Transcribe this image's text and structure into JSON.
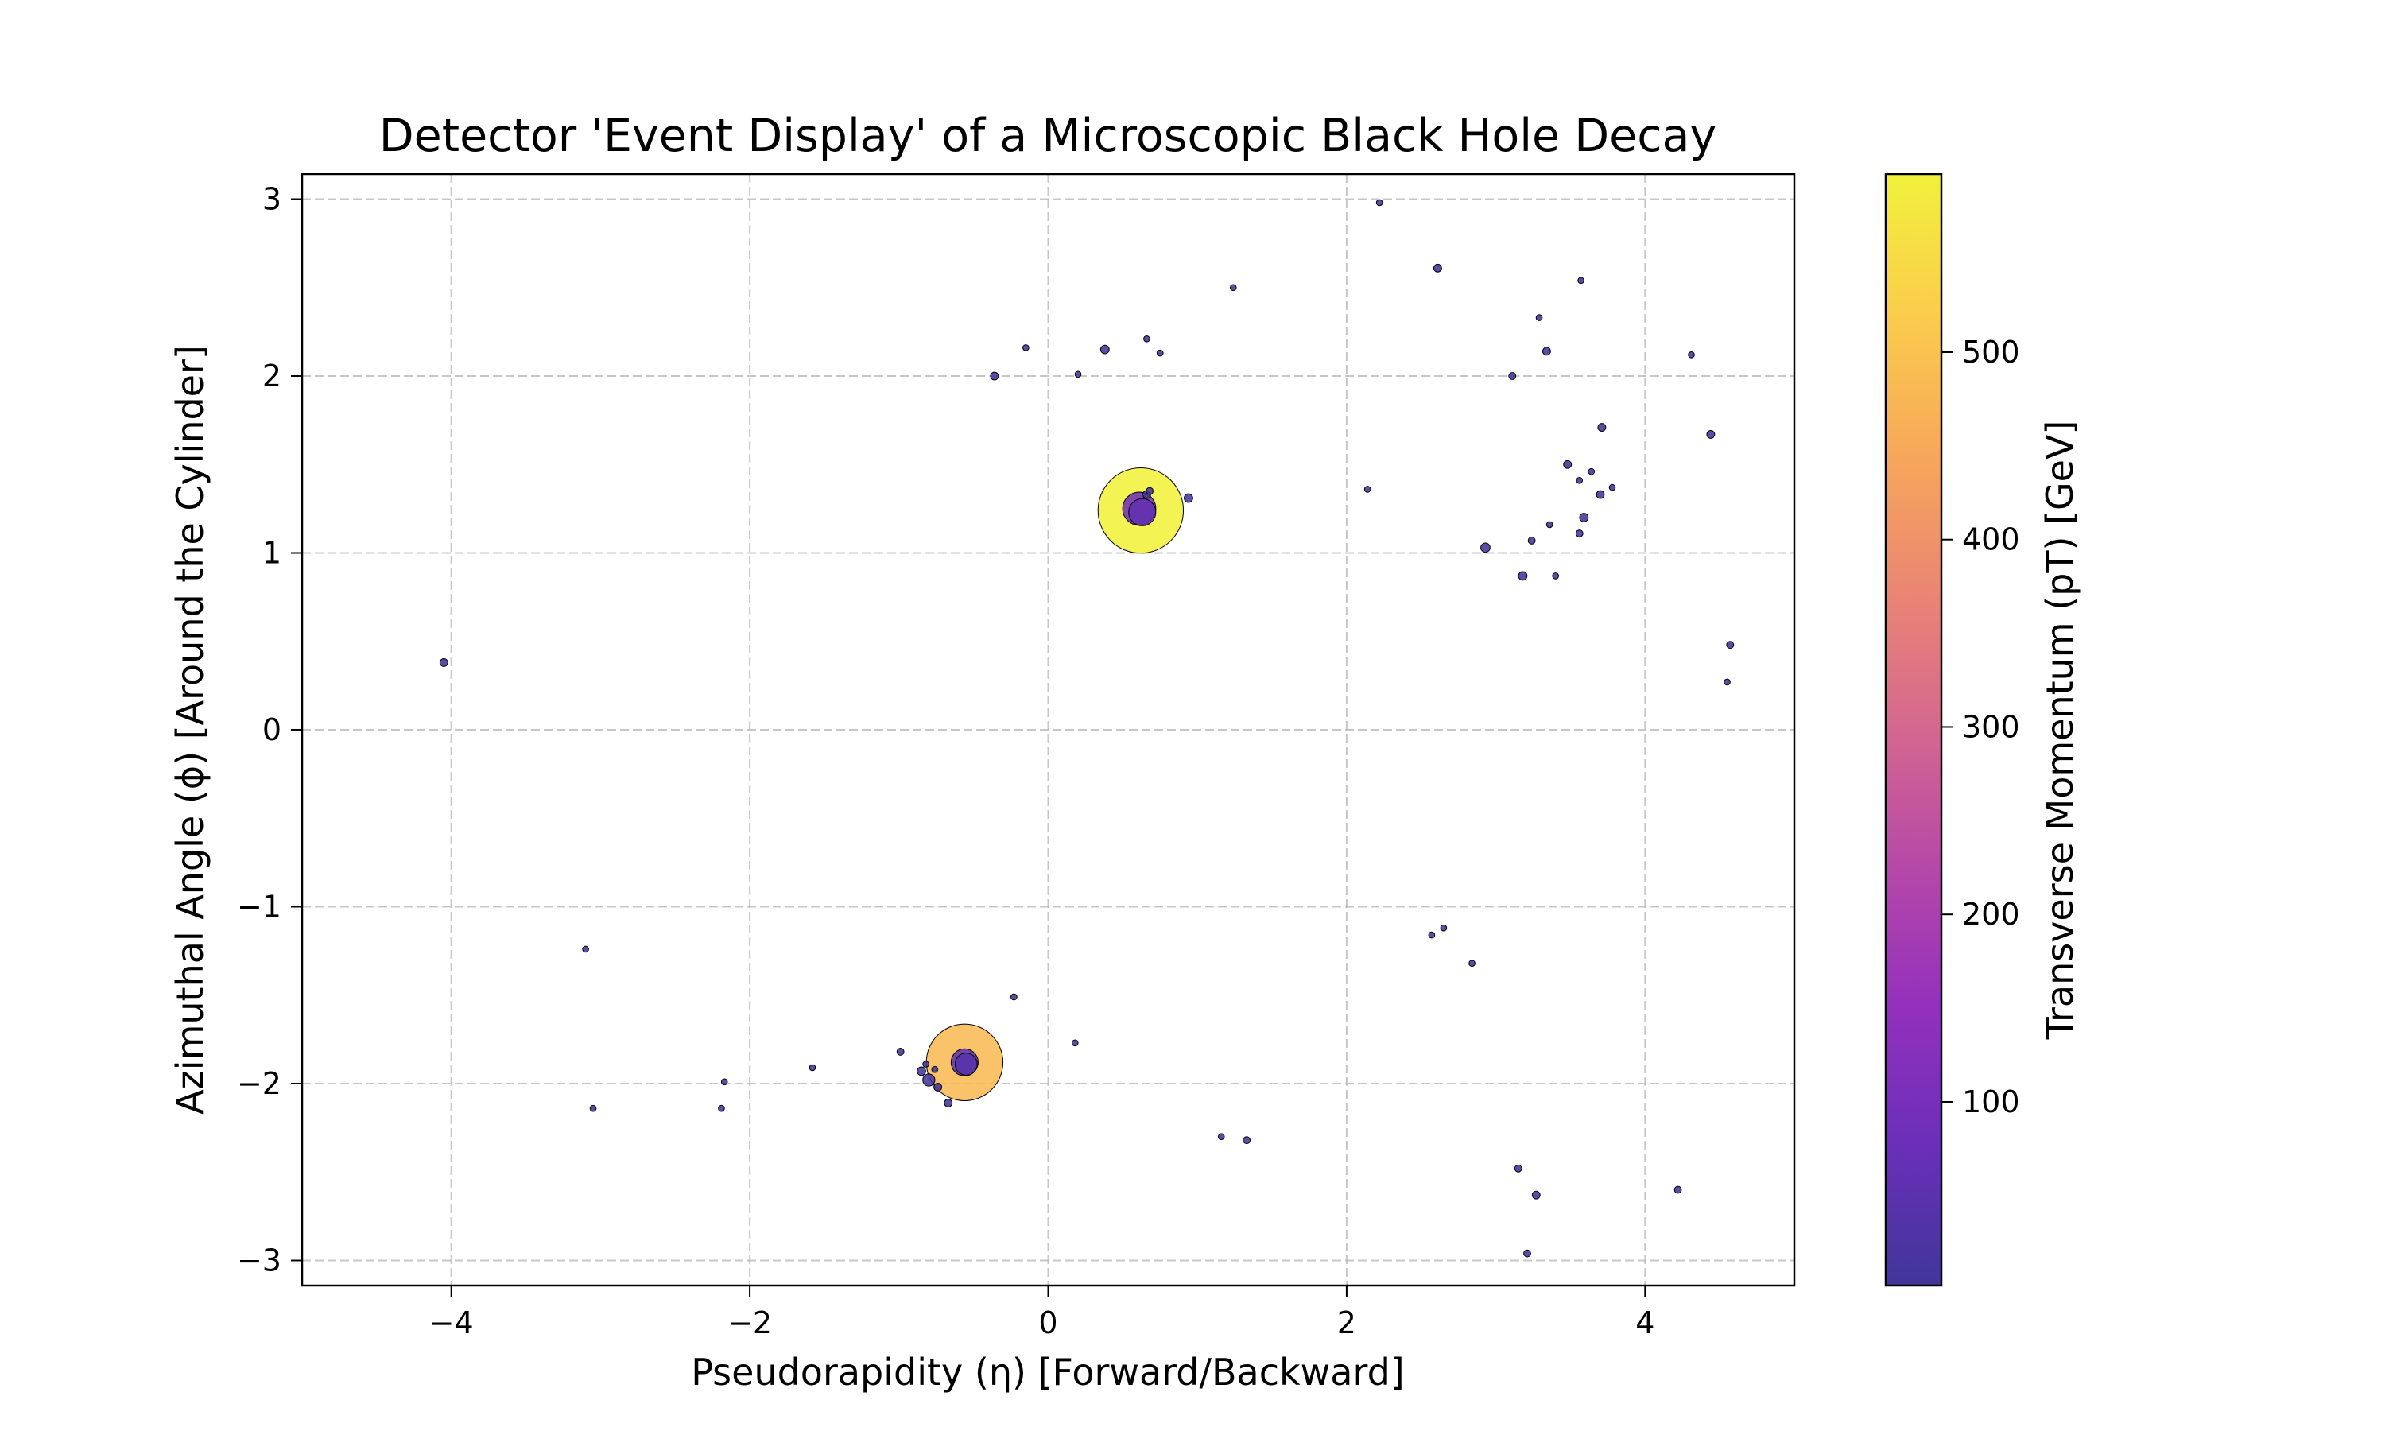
{
  "chart_data": {
    "type": "scatter",
    "title": "Detector 'Event Display' of a Microscopic Black Hole Decay",
    "xlabel": "Pseudorapidity (η) [Forward/Backward]",
    "ylabel": "Azimuthal Angle (ϕ) [Around the Cylinder]",
    "colorbar_label": "Transverse Momentum (pT) [GeV]",
    "xlim": [
      -5,
      5
    ],
    "ylim": [
      -3.1416,
      3.1416
    ],
    "xticks": [
      -4,
      -2,
      0,
      2,
      4
    ],
    "xtick_labels": [
      "−4",
      "−2",
      "0",
      "2",
      "4"
    ],
    "yticks": [
      -3,
      -2,
      -1,
      0,
      1,
      2,
      3
    ],
    "ytick_labels": [
      "−3",
      "−2",
      "−1",
      "0",
      "1",
      "2",
      "3"
    ],
    "color_range": [
      2,
      595
    ],
    "cticks": [
      100,
      200,
      300,
      400,
      500
    ],
    "ctick_labels": [
      "100",
      "200",
      "300",
      "400",
      "500"
    ],
    "colormap": "plasma",
    "colormap_stops": [
      "#40369a",
      "#6a2fb8",
      "#9330bd",
      "#b548a8",
      "#d4678f",
      "#ea8673",
      "#f7a85a",
      "#fbcd4c",
      "#f1f13c"
    ],
    "grid": true,
    "marker_size": "proportional to pT",
    "points": [
      {
        "x": 0.62,
        "y": 1.24,
        "pT": 595
      },
      {
        "x": -0.56,
        "y": -1.88,
        "pT": 480
      },
      {
        "x": 0.61,
        "y": 1.25,
        "pT": 90
      },
      {
        "x": 0.63,
        "y": 1.23,
        "pT": 60
      },
      {
        "x": -0.56,
        "y": -1.88,
        "pT": 60
      },
      {
        "x": -0.55,
        "y": -1.89,
        "pT": 40
      },
      {
        "x": -0.8,
        "y": -1.98,
        "pT": 12
      },
      {
        "x": -0.85,
        "y": -1.93,
        "pT": 6
      },
      {
        "x": -0.67,
        "y": -2.11,
        "pT": 5
      },
      {
        "x": -0.74,
        "y": -2.02,
        "pT": 5
      },
      {
        "x": -0.76,
        "y": -1.92,
        "pT": 3
      },
      {
        "x": -0.82,
        "y": -1.89,
        "pT": 3
      },
      {
        "x": 0.66,
        "y": 1.33,
        "pT": 5
      },
      {
        "x": 0.68,
        "y": 1.35,
        "pT": 4
      },
      {
        "x": 0.94,
        "y": 1.31,
        "pT": 6
      },
      {
        "x": -4.05,
        "y": 0.38,
        "pT": 5
      },
      {
        "x": -0.36,
        "y": 2.0,
        "pT": 5
      },
      {
        "x": -0.15,
        "y": 2.16,
        "pT": 3
      },
      {
        "x": 0.2,
        "y": 2.01,
        "pT": 3
      },
      {
        "x": 0.38,
        "y": 2.15,
        "pT": 6
      },
      {
        "x": 0.66,
        "y": 2.21,
        "pT": 3
      },
      {
        "x": 0.75,
        "y": 2.13,
        "pT": 3
      },
      {
        "x": 1.24,
        "y": 2.5,
        "pT": 3
      },
      {
        "x": 2.22,
        "y": 2.98,
        "pT": 3
      },
      {
        "x": 2.61,
        "y": 2.61,
        "pT": 5
      },
      {
        "x": 3.57,
        "y": 2.54,
        "pT": 3
      },
      {
        "x": 3.29,
        "y": 2.33,
        "pT": 3
      },
      {
        "x": 3.34,
        "y": 2.14,
        "pT": 5
      },
      {
        "x": 3.11,
        "y": 2.0,
        "pT": 4
      },
      {
        "x": 4.31,
        "y": 2.12,
        "pT": 3
      },
      {
        "x": 4.44,
        "y": 1.67,
        "pT": 5
      },
      {
        "x": 3.71,
        "y": 1.71,
        "pT": 5
      },
      {
        "x": 3.48,
        "y": 1.5,
        "pT": 5
      },
      {
        "x": 3.64,
        "y": 1.46,
        "pT": 3
      },
      {
        "x": 3.56,
        "y": 1.41,
        "pT": 3
      },
      {
        "x": 3.78,
        "y": 1.37,
        "pT": 3
      },
      {
        "x": 3.7,
        "y": 1.33,
        "pT": 5
      },
      {
        "x": 3.59,
        "y": 1.2,
        "pT": 6
      },
      {
        "x": 3.36,
        "y": 1.16,
        "pT": 3
      },
      {
        "x": 3.56,
        "y": 1.11,
        "pT": 4
      },
      {
        "x": 3.24,
        "y": 1.07,
        "pT": 4
      },
      {
        "x": 2.93,
        "y": 1.03,
        "pT": 7
      },
      {
        "x": 3.18,
        "y": 0.87,
        "pT": 6
      },
      {
        "x": 3.4,
        "y": 0.87,
        "pT": 3
      },
      {
        "x": 2.14,
        "y": 1.36,
        "pT": 3
      },
      {
        "x": 4.57,
        "y": 0.48,
        "pT": 4
      },
      {
        "x": 4.55,
        "y": 0.27,
        "pT": 3
      },
      {
        "x": -3.1,
        "y": -1.24,
        "pT": 3
      },
      {
        "x": -3.05,
        "y": -2.14,
        "pT": 3
      },
      {
        "x": -2.17,
        "y": -1.99,
        "pT": 3
      },
      {
        "x": -2.19,
        "y": -2.14,
        "pT": 3
      },
      {
        "x": -1.58,
        "y": -1.91,
        "pT": 3
      },
      {
        "x": -0.99,
        "y": -1.82,
        "pT": 4
      },
      {
        "x": -0.23,
        "y": -1.51,
        "pT": 3
      },
      {
        "x": 0.18,
        "y": -1.77,
        "pT": 3
      },
      {
        "x": 1.16,
        "y": -2.3,
        "pT": 3
      },
      {
        "x": 1.33,
        "y": -2.32,
        "pT": 4
      },
      {
        "x": 2.57,
        "y": -1.16,
        "pT": 3
      },
      {
        "x": 2.65,
        "y": -1.12,
        "pT": 3
      },
      {
        "x": 2.84,
        "y": -1.32,
        "pT": 3
      },
      {
        "x": 3.15,
        "y": -2.48,
        "pT": 4
      },
      {
        "x": 3.27,
        "y": -2.63,
        "pT": 5
      },
      {
        "x": 3.21,
        "y": -2.96,
        "pT": 4
      },
      {
        "x": 4.22,
        "y": -2.6,
        "pT": 4
      }
    ]
  }
}
